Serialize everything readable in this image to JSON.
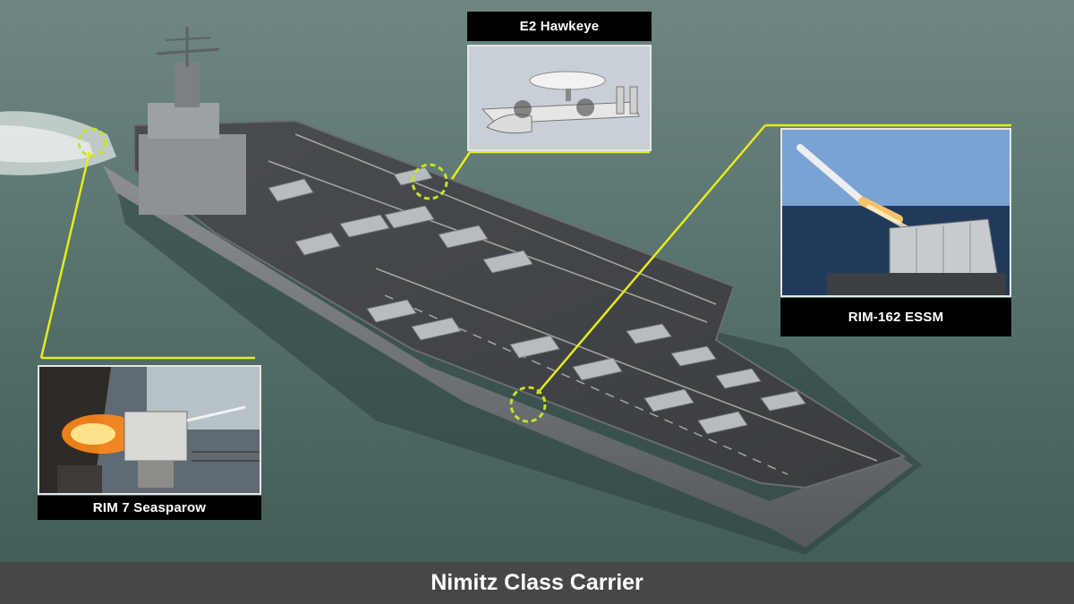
{
  "caption": "Nimitz Class Carrier",
  "callouts": {
    "e2": {
      "label": "E2 Hawkeye"
    },
    "essm": {
      "label": "RIM-162 ESSM"
    },
    "seasparrow": {
      "label": "RIM 7 Seasparow"
    }
  },
  "colors": {
    "highlight": "#e4ec1c",
    "sea": "#56706b",
    "caption_bar": "#464646"
  }
}
